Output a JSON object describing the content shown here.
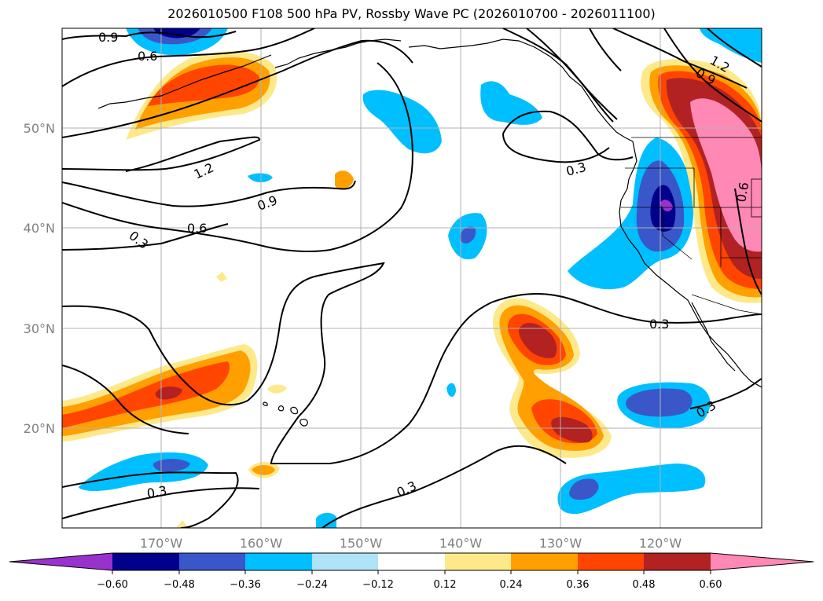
{
  "title": "2026010500 F108 500 hPa PV, Rossby Wave PC (2026010700 - 2026011100)",
  "latitude_labels": [
    "50°N",
    "40°N",
    "30°N",
    "20°N"
  ],
  "longitude_labels": [
    "170°W",
    "160°W",
    "150°W",
    "140°W",
    "130°W",
    "120°W"
  ],
  "contour_labels": [
    "0.9",
    "0.6",
    "1.2",
    "0.9",
    "0.6",
    "0.3",
    "0.3",
    "1.2",
    "0.9",
    "0.6",
    "0.3",
    "0.3",
    "0.3",
    "0.3"
  ],
  "colorbar": {
    "ticks": [
      "−0.60",
      "−0.48",
      "−0.36",
      "−0.24",
      "−0.12",
      "0.12",
      "0.24",
      "0.36",
      "0.48",
      "0.60"
    ],
    "colors": [
      "#9932cc",
      "#00008b",
      "#3a57c9",
      "#00bfff",
      "#aee3f8",
      "#ffffff",
      "#fde98a",
      "#ffa000",
      "#ff4500",
      "#b22222",
      "#ff88b4"
    ]
  },
  "fill_colors": {
    "neg_1": "#aee3f8",
    "neg_2": "#00bfff",
    "neg_3": "#3a57c9",
    "neg_4": "#00008b",
    "neg_5": "#9932cc",
    "pos_1": "#fde98a",
    "pos_2": "#ffa000",
    "pos_3": "#ff4500",
    "pos_4": "#b22222",
    "pos_5": "#ff88b4"
  }
}
